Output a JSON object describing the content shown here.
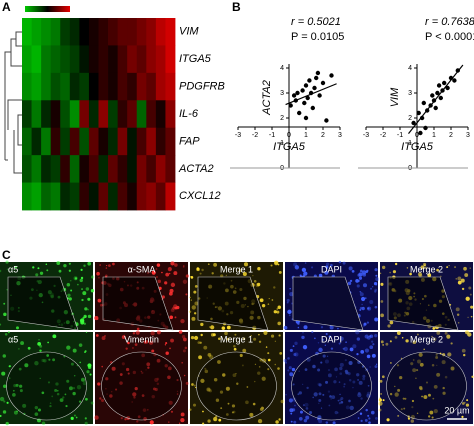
{
  "panels": {
    "a": "A",
    "b": "B",
    "c": "C"
  },
  "chart_data": [
    {
      "type": "heatmap",
      "rows": [
        "VIM",
        "ITGA5",
        "PDGFRB",
        "IL-6",
        "FAP",
        "ACTA2",
        "CXCL12"
      ],
      "low_color": "#00c800",
      "mid_color": "#000000",
      "high_color": "#e80000",
      "values": [
        [
          -0.9,
          -0.8,
          -0.7,
          -0.6,
          -0.3,
          -0.2,
          0,
          0.1,
          0.2,
          0.3,
          0.4,
          0.4,
          0.5,
          0.6,
          0.8,
          0.9
        ],
        [
          -0.8,
          -0.9,
          -0.6,
          -0.5,
          -0.4,
          -0.3,
          -0.1,
          0.1,
          0.2,
          0.1,
          0.3,
          0.5,
          0.4,
          0.6,
          0.7,
          0.9
        ],
        [
          -0.7,
          -0.8,
          -0.6,
          -0.4,
          -0.5,
          -0.2,
          -0.3,
          0,
          0.2,
          0.1,
          0.3,
          0.2,
          0.5,
          0.4,
          0.7,
          0.8
        ],
        [
          -0.3,
          -0.6,
          -0.2,
          0.1,
          -0.4,
          -0.7,
          0.5,
          -0.2,
          0.6,
          -0.3,
          0.2,
          0.4,
          -0.5,
          0.3,
          0.1,
          0.6
        ],
        [
          -0.5,
          -0.2,
          -0.6,
          0.2,
          -0.3,
          0.3,
          -0.4,
          0.4,
          0.1,
          -0.2,
          0.5,
          -0.1,
          0.3,
          0.6,
          0.2,
          0.4
        ],
        [
          -0.4,
          -0.6,
          -0.2,
          -0.3,
          0.2,
          -0.5,
          0.1,
          0.3,
          -0.2,
          0.4,
          0.2,
          -0.1,
          0.5,
          0.3,
          0.6,
          0.4
        ],
        [
          -0.7,
          -0.8,
          -0.5,
          -0.6,
          -0.2,
          -0.3,
          0.2,
          -0.1,
          0.4,
          -0.2,
          0.3,
          0.1,
          0.5,
          0.6,
          0.4,
          0.8
        ]
      ]
    },
    {
      "type": "scatter",
      "x_label": "ITGA5",
      "y_label": "ACTA2",
      "r": "r = 0.5021",
      "p": "P = 0.0105",
      "color": "#000000",
      "xlim": [
        -3,
        3
      ],
      "xticks": [
        -3,
        -2,
        -1,
        0,
        1,
        2,
        3
      ],
      "ylim": [
        0,
        4
      ],
      "yticks": [
        0,
        1,
        2,
        3,
        4
      ],
      "x": [
        0.1,
        0.3,
        0.5,
        0.6,
        0.8,
        0.9,
        1.0,
        1.1,
        1.2,
        1.3,
        1.4,
        1.5,
        1.6,
        1.8,
        2.0,
        2.2,
        2.5,
        0.4,
        1.0,
        1.7
      ],
      "y": [
        2.5,
        2.9,
        3.0,
        2.2,
        3.1,
        2.6,
        3.3,
        2.8,
        3.5,
        3.0,
        2.4,
        3.2,
        3.6,
        2.9,
        3.4,
        1.9,
        3.7,
        2.7,
        2.0,
        3.8
      ]
    },
    {
      "type": "scatter",
      "x_label": "ITGA5",
      "y_label": "VIM",
      "r": "r = 0.7638",
      "p": "P < 0.0001",
      "color": "#000000",
      "xlim": [
        -3,
        3
      ],
      "xticks": [
        -3,
        -2,
        -1,
        0,
        1,
        2,
        3
      ],
      "ylim": [
        0,
        4
      ],
      "yticks": [
        0,
        1,
        2,
        3,
        4
      ],
      "x": [
        -0.2,
        0.1,
        0.3,
        0.4,
        0.6,
        0.8,
        0.9,
        1.0,
        1.2,
        1.3,
        1.5,
        1.6,
        1.8,
        2.0,
        2.2,
        2.4,
        0.5,
        1.1,
        1.4,
        0.2
      ],
      "y": [
        1.8,
        2.2,
        2.0,
        2.6,
        2.3,
        2.5,
        2.9,
        2.7,
        3.0,
        3.3,
        3.1,
        3.4,
        3.2,
        3.6,
        3.5,
        3.9,
        1.6,
        2.4,
        2.8,
        1.4
      ]
    }
  ],
  "images": {
    "row1": [
      "α5",
      "α-SMA",
      "Merge 1",
      "DAPI",
      "Merge 2"
    ],
    "row2": [
      "α5",
      "Vimentin",
      "Merge 1",
      "DAPI",
      "Merge 2"
    ],
    "scale_bar": "20 µm"
  }
}
